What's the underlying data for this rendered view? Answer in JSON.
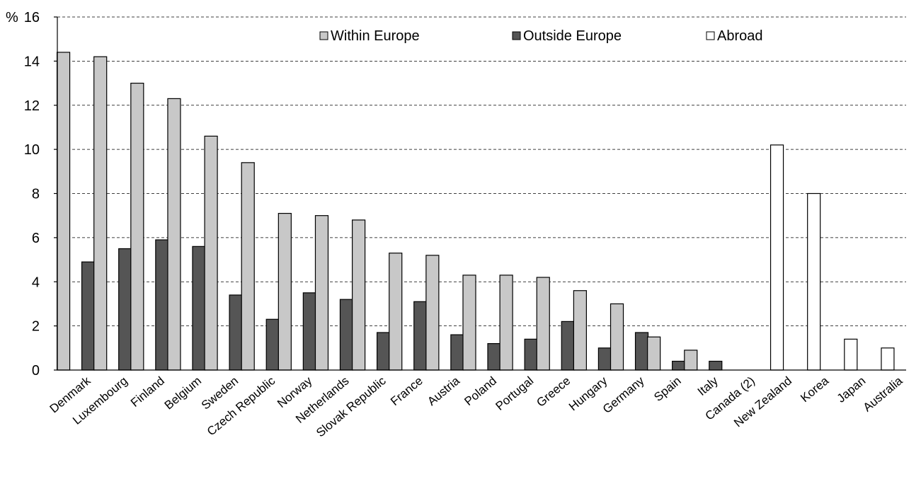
{
  "chart_data": {
    "type": "bar",
    "title": "",
    "ylabel": "%",
    "xlabel": "",
    "ylim": [
      0,
      16
    ],
    "yticks": [
      0,
      2,
      4,
      6,
      8,
      10,
      12,
      14,
      16
    ],
    "grid": true,
    "legend_position": "top",
    "categories": [
      "Denmark",
      "Luxembourg",
      "Finland",
      "Belgium",
      "Sweden",
      "Czech Republic",
      "Norway",
      "Netherlands",
      "Slovak Republic",
      "France",
      "Austria",
      "Poland",
      "Portugal",
      "Greece",
      "Hungary",
      "Germany",
      "Spain",
      "Italy",
      "Canada (2)",
      "New Zealand",
      "Korea",
      "Japan",
      "Australia"
    ],
    "series": [
      {
        "name": "Within Europe",
        "color": "#c8c8c8",
        "values": [
          14.4,
          14.2,
          13.0,
          12.3,
          10.6,
          9.4,
          7.1,
          7.0,
          6.8,
          5.3,
          5.2,
          4.3,
          4.3,
          4.2,
          3.6,
          3.0,
          1.5,
          0.9,
          null,
          null,
          null,
          null,
          null
        ]
      },
      {
        "name": "Outside Europe",
        "color": "#555555",
        "values": [
          4.9,
          5.5,
          5.9,
          5.6,
          3.4,
          2.3,
          3.5,
          3.2,
          1.7,
          3.1,
          1.6,
          1.2,
          1.4,
          2.2,
          1.0,
          1.7,
          0.4,
          0.4,
          null,
          null,
          null,
          null,
          null
        ]
      },
      {
        "name": "Abroad",
        "color": "#ffffff",
        "values": [
          null,
          null,
          null,
          null,
          null,
          null,
          null,
          null,
          null,
          null,
          null,
          null,
          null,
          null,
          null,
          null,
          null,
          null,
          null,
          10.2,
          8.0,
          1.4,
          1.0
        ]
      }
    ]
  }
}
